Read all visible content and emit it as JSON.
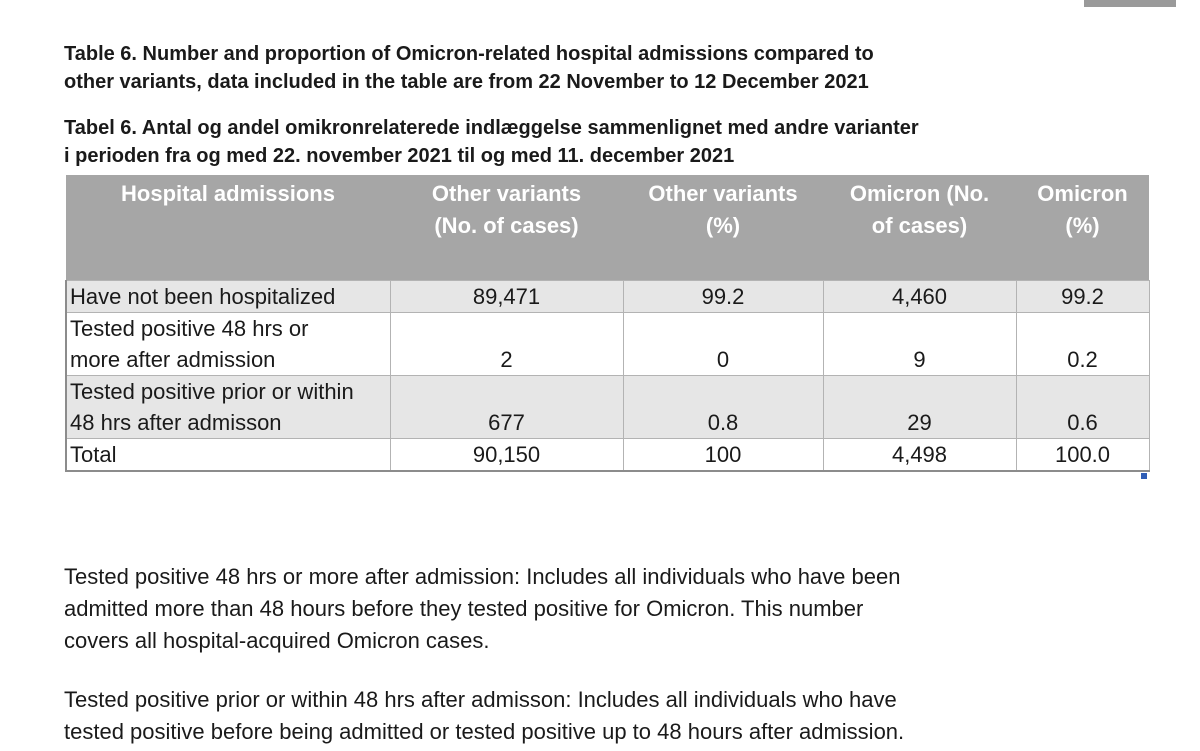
{
  "document": {
    "title_en_line1": "Table 6. Number and proportion of Omicron-related hospital admissions compared to",
    "title_en_line2": "other variants, data included in the table are from 22 November to 12 December 2021",
    "title_da_line1": "Tabel 6. Antal og andel omikronrelaterede indlæggelse sammenlignet med andre varianter",
    "title_da_line2": "i perioden fra og med 22. november 2021 til og med 11. december 2021"
  },
  "table": {
    "headers": [
      {
        "line1": "Hospital admissions",
        "line2": ""
      },
      {
        "line1": "Other variants",
        "line2": "(No. of cases)"
      },
      {
        "line1": "Other variants",
        "line2": "(%)"
      },
      {
        "line1": "Omicron (No.",
        "line2": "of cases)"
      },
      {
        "line1": "Omicron",
        "line2": "(%)"
      }
    ],
    "rows": [
      {
        "label_line1": "Have not been hospitalized",
        "label_line2": "",
        "cells": [
          "89,471",
          "99.2",
          "4,460",
          "99.2"
        ]
      },
      {
        "label_line1": "Tested positive 48 hrs or",
        "label_line2": "more after admission",
        "cells": [
          "2",
          "0",
          "9",
          "0.2"
        ]
      },
      {
        "label_line1": "Tested positive prior or within",
        "label_line2": "48 hrs after admisson",
        "cells": [
          "677",
          "0.8",
          "29",
          "0.6"
        ]
      },
      {
        "label_line1": "Total",
        "label_line2": "",
        "cells": [
          "90,150",
          "100",
          "4,498",
          "100.0"
        ]
      }
    ]
  },
  "notes": {
    "note1_line1": "Tested positive 48 hrs or more after admission: Includes all individuals who have been",
    "note1_line2": "admitted more than 48 hours before they tested positive for Omicron. This number",
    "note1_line3": "covers all hospital-acquired Omicron cases.",
    "note2_line1": "Tested positive prior or within 48 hrs after admisson: Includes all individuals who have",
    "note2_line2": "tested positive before being admitted or tested positive up to 48 hours after admission."
  },
  "colors": {
    "header_fill": "#a6a6a6",
    "header_text": "#ffffff",
    "row_shade": "#e6e6e6",
    "grid_line": "#b3b3b3",
    "handle": "#2f5db5"
  }
}
